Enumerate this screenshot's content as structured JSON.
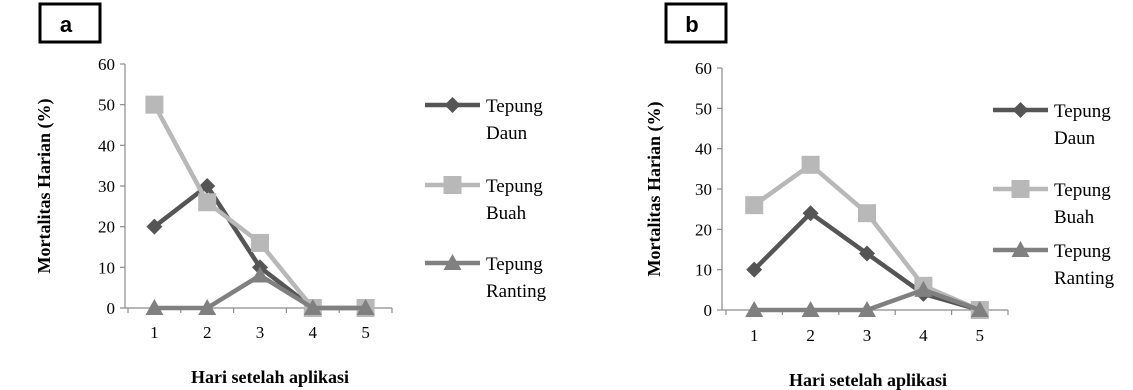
{
  "chart_data": [
    {
      "type": "line",
      "panel_label": "a",
      "x": [
        1,
        2,
        3,
        4,
        5
      ],
      "xlabel": "Hari setelah aplikasi",
      "ylabel": "Mortalitas Harian (%)",
      "ylim": [
        0,
        60
      ],
      "yticks": [
        0,
        10,
        20,
        30,
        40,
        50,
        60
      ],
      "grid": false,
      "legend_position": "right",
      "series": [
        {
          "name": "Tepung Daun",
          "legend_lines": [
            "Tepung",
            "Daun"
          ],
          "values": [
            20,
            30,
            10,
            0,
            0
          ],
          "color": "#555555",
          "marker": "diamond"
        },
        {
          "name": "Tepung Buah",
          "legend_lines": [
            "Tepung",
            "Buah"
          ],
          "values": [
            50,
            26,
            16,
            0,
            0
          ],
          "color": "#b8b8b8",
          "marker": "square"
        },
        {
          "name": "Tepung Ranting",
          "legend_lines": [
            "Tepung",
            "Ranting"
          ],
          "values": [
            0,
            0,
            8,
            0,
            0
          ],
          "color": "#808080",
          "marker": "triangle"
        }
      ]
    },
    {
      "type": "line",
      "panel_label": "b",
      "x": [
        1,
        2,
        3,
        4,
        5
      ],
      "xlabel": "Hari setelah aplikasi",
      "ylabel": "Mortalitas Harian (%)",
      "ylim": [
        0,
        60
      ],
      "yticks": [
        0,
        10,
        20,
        30,
        40,
        50,
        60
      ],
      "grid": false,
      "legend_position": "right",
      "series": [
        {
          "name": "Tepung Daun",
          "legend_lines": [
            "Tepung",
            "Daun"
          ],
          "values": [
            10,
            24,
            14,
            4,
            0
          ],
          "color": "#555555",
          "marker": "diamond"
        },
        {
          "name": "Tepung Buah",
          "legend_lines": [
            "Tepung",
            "Buah"
          ],
          "values": [
            26,
            36,
            24,
            6,
            0
          ],
          "color": "#b8b8b8",
          "marker": "square"
        },
        {
          "name": "Tepung Ranting",
          "legend_lines": [
            "Tepung",
            "Ranting"
          ],
          "values": [
            0,
            0,
            0,
            5,
            0
          ],
          "color": "#808080",
          "marker": "triangle"
        }
      ]
    }
  ]
}
